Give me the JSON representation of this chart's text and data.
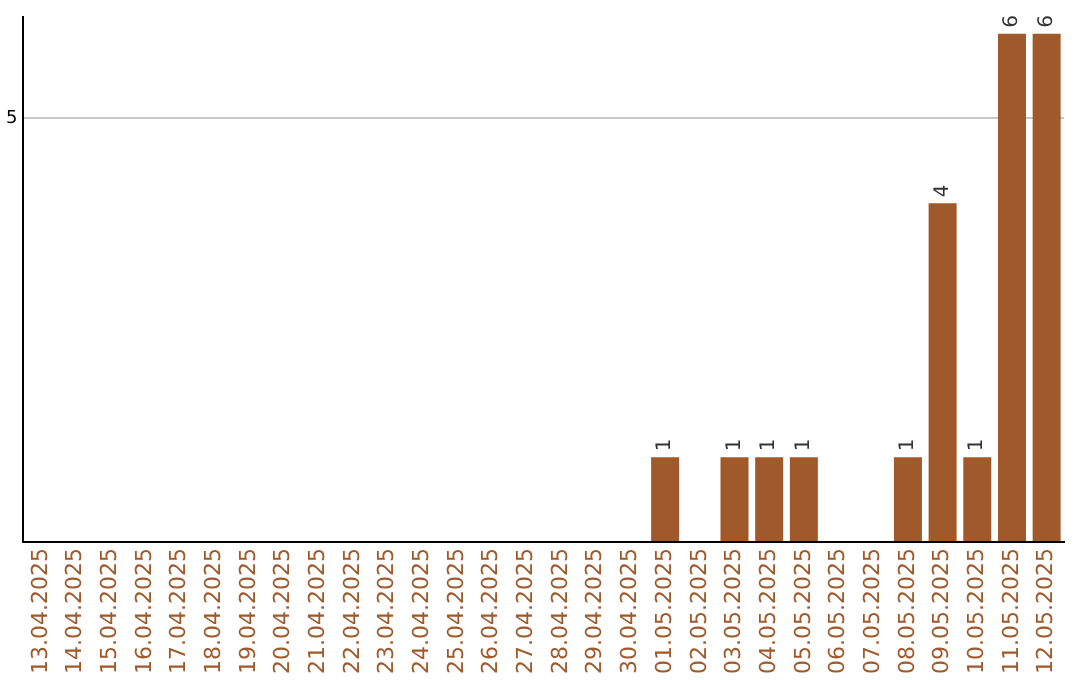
{
  "chart_data": {
    "type": "bar",
    "categories": [
      "13.04.2025",
      "14.04.2025",
      "15.04.2025",
      "16.04.2025",
      "17.04.2025",
      "18.04.2025",
      "19.04.2025",
      "20.04.2025",
      "21.04.2025",
      "22.04.2025",
      "23.04.2025",
      "24.04.2025",
      "25.04.2025",
      "26.04.2025",
      "27.04.2025",
      "28.04.2025",
      "29.04.2025",
      "30.04.2025",
      "01.05.2025",
      "02.05.2025",
      "03.05.2025",
      "04.05.2025",
      "05.05.2025",
      "06.05.2025",
      "07.05.2025",
      "08.05.2025",
      "09.05.2025",
      "10.05.2025",
      "11.05.2025",
      "12.05.2025"
    ],
    "values": [
      null,
      null,
      null,
      null,
      null,
      null,
      null,
      null,
      null,
      null,
      null,
      null,
      null,
      null,
      null,
      null,
      null,
      null,
      1,
      null,
      1,
      1,
      1,
      null,
      null,
      1,
      4,
      1,
      6,
      6
    ],
    "color": "#a0592a",
    "ylim": [
      0,
      6.2
    ],
    "yticks": [
      {
        "value": 0,
        "label": null
      },
      5
    ],
    "grid": "y",
    "legend": false,
    "data_labels": true
  }
}
